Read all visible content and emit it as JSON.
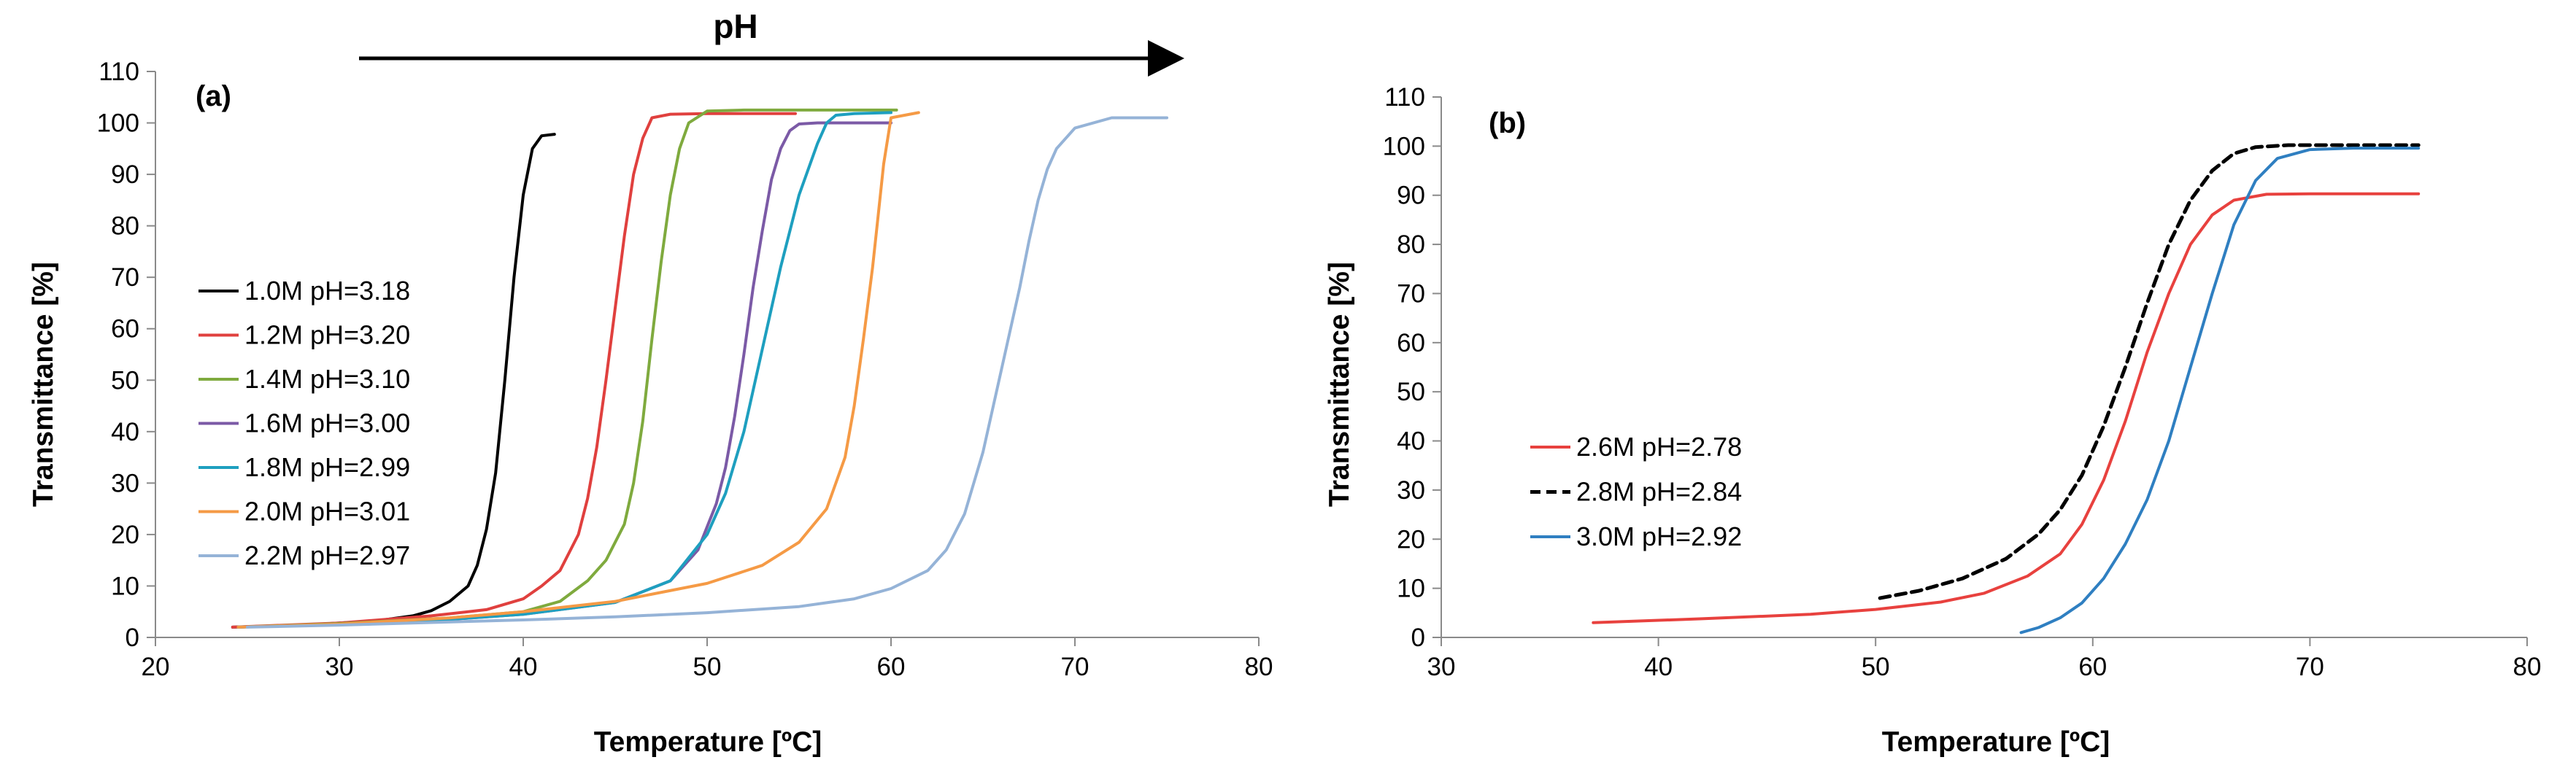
{
  "pH_arrow_label": "pH",
  "chart_data": [
    {
      "type": "line",
      "panel_label": "(a)",
      "xlabel": "Temperature [ºC]",
      "ylabel": "Transmittance [%]",
      "xlim": [
        20,
        80
      ],
      "ylim": [
        0,
        110
      ],
      "xticks": [
        20,
        30,
        40,
        50,
        60,
        70,
        80
      ],
      "yticks": [
        0,
        10,
        20,
        30,
        40,
        50,
        60,
        70,
        80,
        90,
        100,
        110
      ],
      "grid": false,
      "legend_position": "left",
      "series": [
        {
          "name": "1.0M pH=3.18",
          "color": "#000000",
          "dash": "solid",
          "x": [
            24.2,
            28,
            32,
            34,
            35,
            36,
            37,
            37.5,
            38,
            38.5,
            39,
            39.5,
            40,
            40.5,
            41,
            41.7
          ],
          "y": [
            2.0,
            2.4,
            3.2,
            4.2,
            5.2,
            7.0,
            10,
            14,
            21,
            32,
            50,
            70,
            86,
            95,
            97.5,
            97.8
          ]
        },
        {
          "name": "1.2M pH=3.20",
          "color": "#e0403e",
          "dash": "solid",
          "x": [
            24.2,
            30,
            35,
            38,
            40,
            41,
            42,
            43,
            43.5,
            44,
            44.5,
            45,
            45.5,
            46,
            46.5,
            47,
            48,
            50,
            54.8
          ],
          "y": [
            2.0,
            2.8,
            4.2,
            5.4,
            7.5,
            10,
            13,
            20,
            27,
            37,
            50,
            64,
            78,
            90,
            97,
            101,
            101.7,
            101.8,
            101.8
          ]
        },
        {
          "name": "1.4M pH=3.10",
          "color": "#7faa3e",
          "dash": "solid",
          "x": [
            24.5,
            30,
            36,
            40,
            42,
            43.5,
            44.5,
            45.5,
            46,
            46.5,
            47,
            47.5,
            48,
            48.5,
            49,
            50,
            52,
            55,
            60.3
          ],
          "y": [
            2.0,
            2.7,
            3.8,
            5.0,
            7.0,
            11,
            15,
            22,
            30,
            42,
            58,
            73,
            86,
            95,
            100,
            102.3,
            102.5,
            102.5,
            102.5
          ]
        },
        {
          "name": "1.6M pH=3.00",
          "color": "#7b5aa6",
          "dash": "solid",
          "x": [
            24.5,
            30,
            36,
            40,
            45,
            48,
            49.5,
            50.5,
            51,
            51.5,
            52,
            52.5,
            53,
            53.5,
            54,
            54.5,
            55,
            56,
            60
          ],
          "y": [
            2.0,
            2.5,
            3.5,
            4.5,
            6.8,
            11,
            17,
            26,
            33,
            43,
            55,
            68,
            79,
            89,
            95,
            98.5,
            99.8,
            100,
            100
          ]
        },
        {
          "name": "1.8M pH=2.99",
          "color": "#1e9fbf",
          "dash": "solid",
          "x": [
            24.5,
            30,
            36,
            40,
            45,
            48,
            50,
            51,
            52,
            53,
            54,
            55,
            56,
            56.5,
            57,
            58,
            60
          ],
          "y": [
            2.0,
            2.5,
            3.5,
            4.5,
            6.8,
            11,
            20,
            28,
            40,
            56,
            72,
            86,
            96,
            100,
            101.5,
            101.8,
            102
          ]
        },
        {
          "name": "2.0M pH=3.01",
          "color": "#f59a45",
          "dash": "solid",
          "x": [
            24.5,
            30,
            36,
            40,
            45,
            50,
            53,
            55,
            56.5,
            57.5,
            58,
            58.5,
            59,
            59.3,
            59.6,
            60,
            61.5
          ],
          "y": [
            2.0,
            2.6,
            3.8,
            5.0,
            7.0,
            10.5,
            14,
            18.5,
            25,
            35,
            45,
            58,
            72,
            82,
            92,
            101,
            102
          ]
        },
        {
          "name": "2.2M pH=2.97",
          "color": "#95b3d7",
          "dash": "solid",
          "x": [
            25,
            30,
            35,
            40,
            45,
            50,
            55,
            58,
            60,
            62,
            63,
            64,
            65,
            66,
            67,
            67.5,
            68,
            68.5,
            69,
            70,
            72,
            75
          ],
          "y": [
            2.0,
            2.4,
            2.9,
            3.4,
            4.0,
            4.8,
            6.0,
            7.5,
            9.5,
            13,
            17,
            24,
            36,
            52,
            68,
            77,
            85,
            91,
            95,
            99,
            101,
            101
          ]
        }
      ]
    },
    {
      "type": "line",
      "panel_label": "(b)",
      "xlabel": "Temperature [ºC]",
      "ylabel": "Transmittance [%]",
      "xlim": [
        30,
        80
      ],
      "ylim": [
        0,
        110
      ],
      "xticks": [
        30,
        40,
        50,
        60,
        70,
        80
      ],
      "yticks": [
        0,
        10,
        20,
        30,
        40,
        50,
        60,
        70,
        80,
        90,
        100,
        110
      ],
      "grid": false,
      "legend_position": "left",
      "series": [
        {
          "name": "2.6M pH=2.78",
          "color": "#e8413e",
          "dash": "solid",
          "x": [
            37,
            42,
            47,
            50,
            53,
            55,
            57,
            58.5,
            59.5,
            60.5,
            61.5,
            62.5,
            63.5,
            64.5,
            65.5,
            66.5,
            68,
            70,
            75
          ],
          "y": [
            3.0,
            3.8,
            4.7,
            5.7,
            7.2,
            9.0,
            12.5,
            17,
            23,
            32,
            44,
            58,
            70,
            80,
            86,
            89,
            90.2,
            90.3,
            90.3
          ]
        },
        {
          "name": "2.8M pH=2.84",
          "color": "#000000",
          "dash": "dashed",
          "x": [
            50.2,
            52,
            54,
            56,
            57.5,
            58.5,
            59.5,
            60.5,
            61.5,
            62.5,
            63.5,
            64.5,
            65.5,
            66.5,
            67.5,
            69,
            72,
            75
          ],
          "y": [
            8.0,
            9.5,
            12,
            16,
            21,
            26,
            33,
            43,
            55,
            68,
            80,
            89,
            95,
            98.5,
            99.8,
            100.2,
            100.2,
            100.2
          ]
        },
        {
          "name": "3.0M pH=2.92",
          "color": "#2f7fc1",
          "dash": "solid",
          "x": [
            56.7,
            57.5,
            58.5,
            59.5,
            60.5,
            61.5,
            62.5,
            63.5,
            64.5,
            65.5,
            66.5,
            67.5,
            68.5,
            70,
            72,
            75
          ],
          "y": [
            1.0,
            2.0,
            4.0,
            7.0,
            12,
            19,
            28,
            40,
            55,
            70,
            84,
            93,
            97.5,
            99.3,
            99.6,
            99.6
          ]
        }
      ]
    }
  ]
}
